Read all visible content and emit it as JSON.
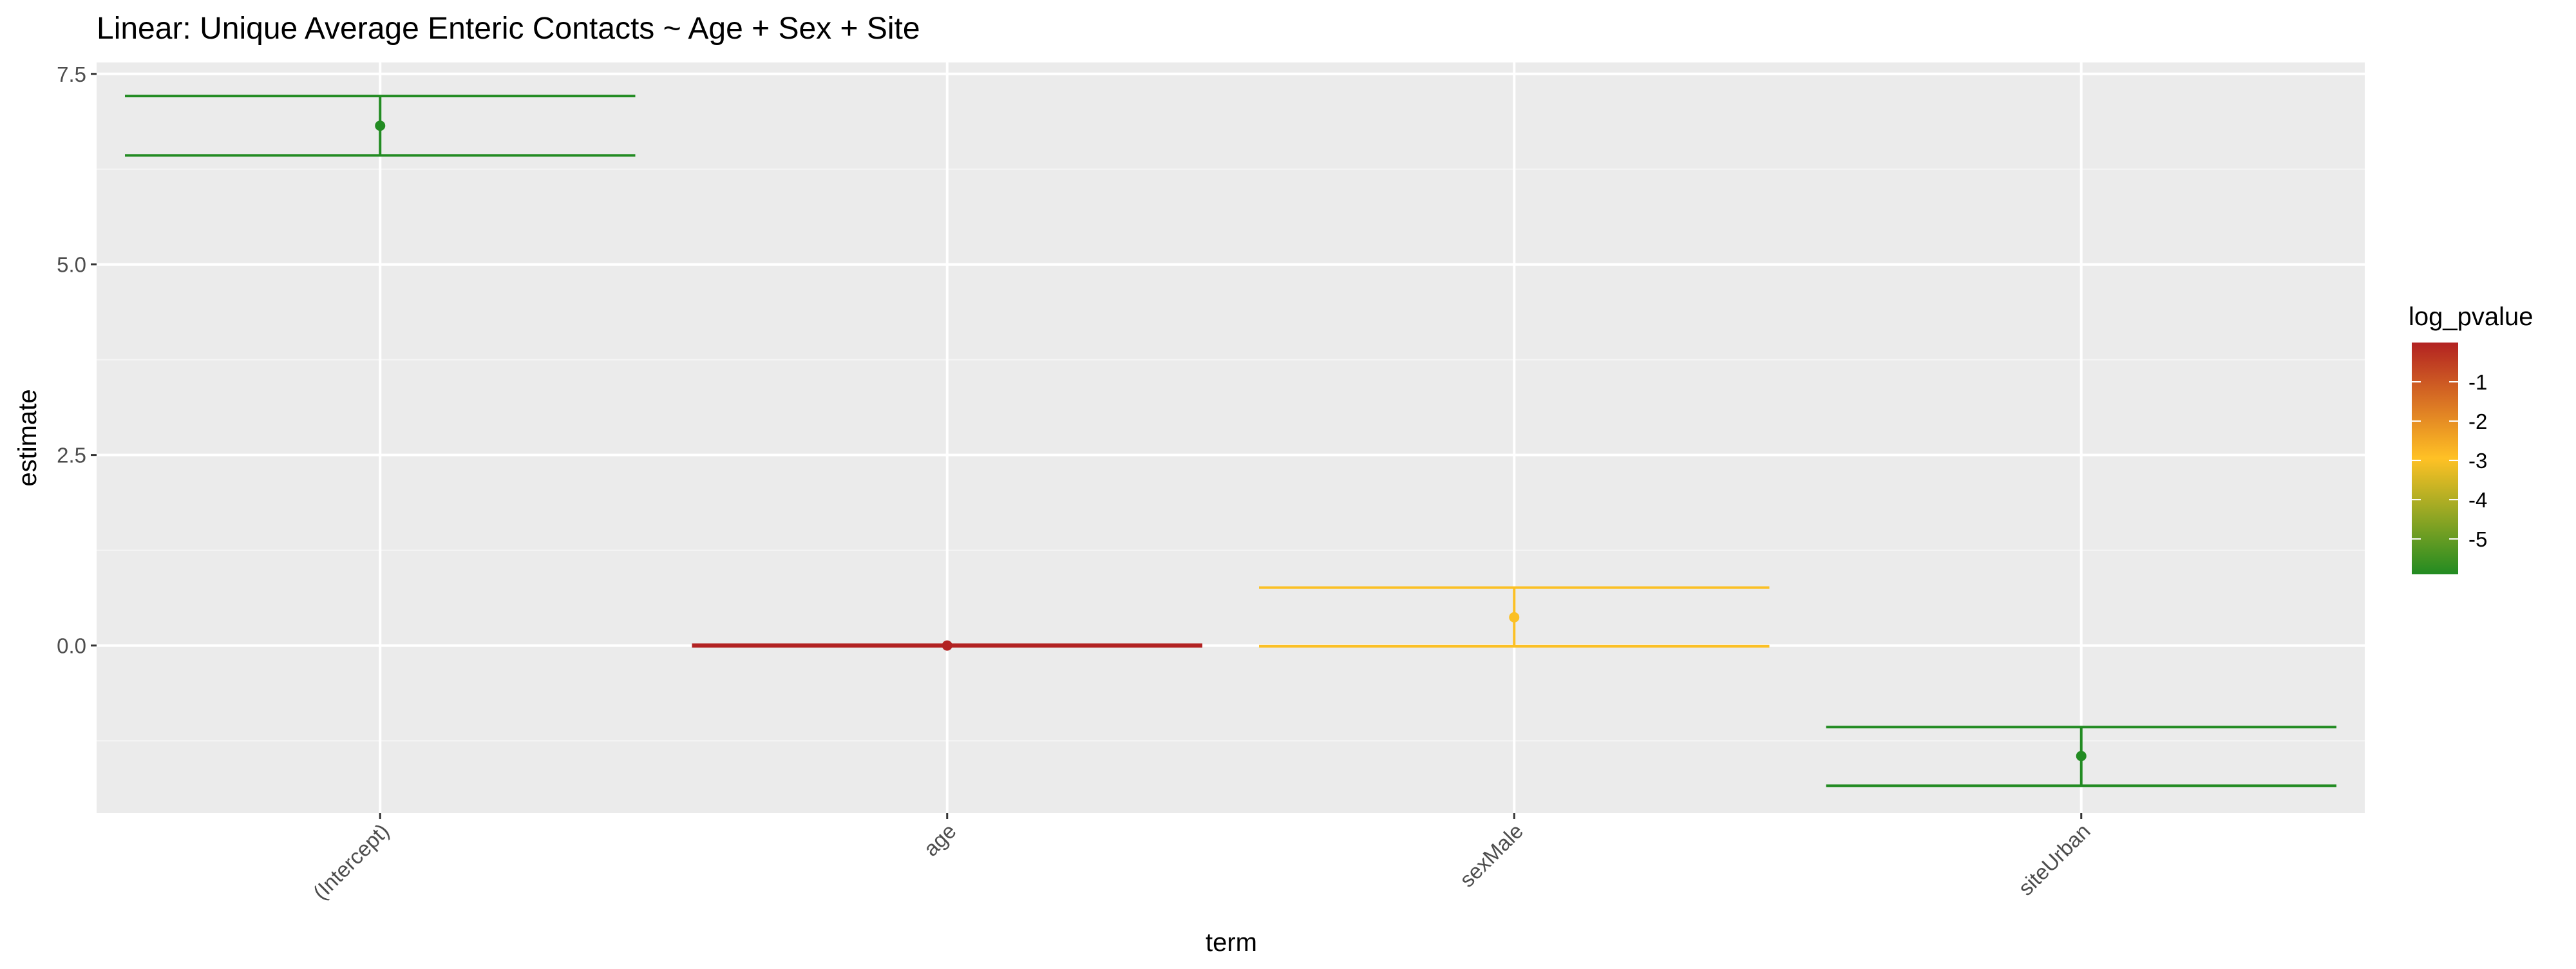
{
  "chart_data": {
    "type": "errorbar",
    "title": "Linear: Unique Average Enteric Contacts ~ Age + Sex + Site",
    "xlabel": "term",
    "ylabel": "estimate",
    "categories": [
      "(Intercept)",
      "age",
      "sexMale",
      "siteUrban"
    ],
    "ylim": [
      -2.2,
      7.65
    ],
    "y_ticks": [
      0.0,
      2.5,
      5.0,
      7.5
    ],
    "y_tick_labels": [
      "0.0",
      "2.5",
      "5.0",
      "7.5"
    ],
    "grid": true,
    "points": [
      {
        "term": "(Intercept)",
        "estimate": 6.82,
        "conf_low": 6.43,
        "conf_high": 7.21,
        "log_pvalue": -5.9
      },
      {
        "term": "age",
        "estimate": 0.0,
        "conf_low": -0.01,
        "conf_high": 0.01,
        "log_pvalue": 0.0
      },
      {
        "term": "sexMale",
        "estimate": 0.37,
        "conf_low": -0.01,
        "conf_high": 0.76,
        "log_pvalue": -3.0
      },
      {
        "term": "siteUrban",
        "estimate": -1.45,
        "conf_low": -1.84,
        "conf_high": -1.07,
        "log_pvalue": -5.9
      }
    ],
    "legend": {
      "title": "log_pvalue",
      "position": "right",
      "labels": [
        "-1",
        "-2",
        "-3",
        "-4",
        "-5"
      ],
      "values": [
        -1,
        -2,
        -3,
        -4,
        -5
      ],
      "range": [
        -5.9,
        0.0
      ],
      "colors": {
        "low": "#228b22",
        "mid": "#ffc125",
        "high": "#b22222"
      }
    },
    "colors": {
      "panel_background": "#ebebeb",
      "grid_major": "#ffffff",
      "grid_minor": "#f5f5f5"
    }
  }
}
